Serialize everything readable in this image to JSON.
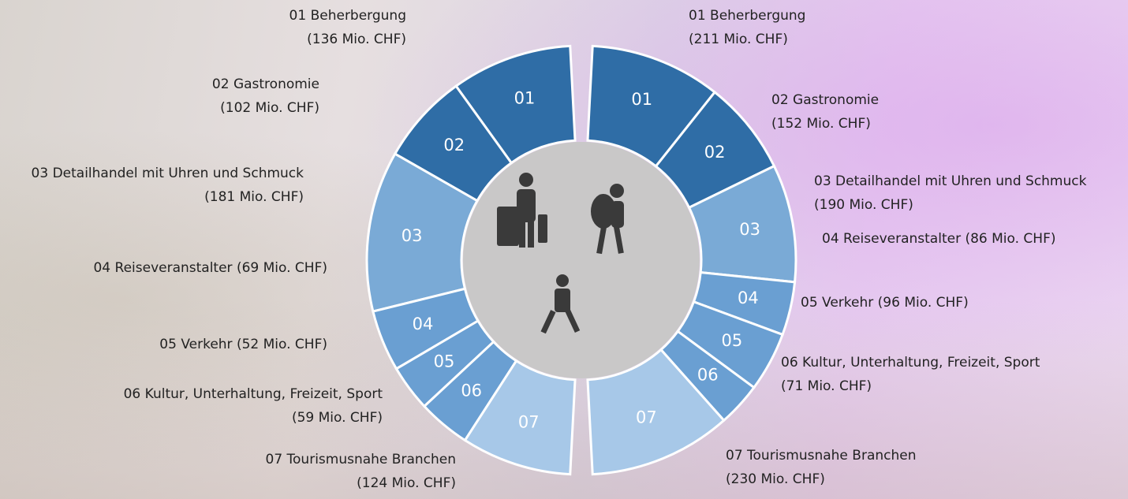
{
  "chart_data": [
    {
      "type": "half-donut",
      "side": "left",
      "segment_labels": [
        "01",
        "02",
        "03",
        "04",
        "05",
        "06",
        "07"
      ],
      "categories": [
        "01 Beherbergung",
        "02 Gastronomie",
        "03 Detailhandel mit  Uhren und Schmuck",
        "04 Reiseveranstalter",
        "05 Verkehr",
        "06 Kultur, Unterhaltung, Freizeit, Sport",
        "07 Tourismusnahe Branchen"
      ],
      "values": [
        136,
        102,
        181,
        69,
        52,
        59,
        124
      ],
      "value_labels": [
        "(136 Mio. CHF)",
        "(102 Mio. CHF)",
        "(181 Mio. CHF)",
        "(69 Mio. CHF)",
        "(52 Mio. CHF)",
        "(59 Mio. CHF)",
        "(124 Mio. CHF)"
      ],
      "colors": [
        "#2f6da6",
        "#2f6da6",
        "#7aaad6",
        "#6a9fd2",
        "#6a9fd2",
        "#6a9fd2",
        "#a7c8e8"
      ]
    },
    {
      "type": "half-donut",
      "side": "right",
      "segment_labels": [
        "01",
        "02",
        "03",
        "04",
        "05",
        "06",
        "07"
      ],
      "categories": [
        "01 Beherbergung",
        "02 Gastronomie",
        "03 Detailhandel mit Uhren und Schmuck",
        "04 Reiseveranstalter",
        "05 Verkehr",
        "06 Kultur, Unterhaltung, Freizeit, Sport",
        "07 Tourismusnahe Branchen"
      ],
      "values": [
        211,
        152,
        190,
        86,
        96,
        71,
        230
      ],
      "value_labels": [
        "(211 Mio. CHF)",
        "(152 Mio. CHF)",
        "(190 Mio. CHF)",
        "(86 Mio. CHF)",
        "(96 Mio. CHF)",
        "(71 Mio. CHF)",
        "(230 Mio. CHF)"
      ],
      "colors": [
        "#2f6da6",
        "#2f6da6",
        "#7aaad6",
        "#6a9fd2",
        "#6a9fd2",
        "#6a9fd2",
        "#a7c8e8"
      ]
    }
  ]
}
